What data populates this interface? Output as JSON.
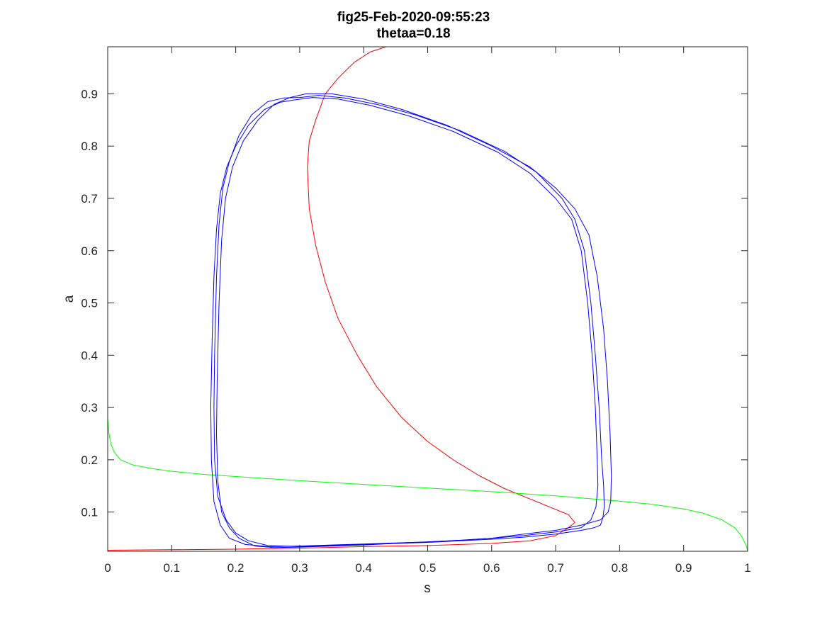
{
  "chart_data": {
    "type": "line",
    "title": "fig25-Feb-2020-09:55:23",
    "subtitle": "thetaa=0.18",
    "xlabel": "s",
    "ylabel": "a",
    "xlim": [
      0,
      1
    ],
    "ylim": [
      0.025,
      0.99
    ],
    "xticks": [
      "0",
      "0.1",
      "0.2",
      "0.3",
      "0.4",
      "0.5",
      "0.6",
      "0.7",
      "0.8",
      "0.9",
      "1"
    ],
    "yticks": [
      "0.1",
      "0.2",
      "0.3",
      "0.4",
      "0.5",
      "0.6",
      "0.7",
      "0.8",
      "0.9"
    ],
    "grid": false,
    "box": true,
    "series": [
      {
        "color": "#ff0000",
        "x": [
          0.0,
          0.1,
          0.2,
          0.25,
          0.3,
          0.4,
          0.5,
          0.6,
          0.66,
          0.7,
          0.72,
          0.73,
          0.72,
          0.69,
          0.66,
          0.62,
          0.58,
          0.54,
          0.5,
          0.46,
          0.42,
          0.39,
          0.36,
          0.34,
          0.325,
          0.315,
          0.312,
          0.315,
          0.325,
          0.34,
          0.36,
          0.385,
          0.41,
          0.435
        ],
        "y": [
          0.027,
          0.028,
          0.029,
          0.03,
          0.031,
          0.034,
          0.036,
          0.04,
          0.045,
          0.055,
          0.07,
          0.08,
          0.095,
          0.11,
          0.125,
          0.145,
          0.17,
          0.2,
          0.235,
          0.28,
          0.34,
          0.4,
          0.47,
          0.54,
          0.61,
          0.68,
          0.76,
          0.81,
          0.85,
          0.9,
          0.93,
          0.96,
          0.98,
          0.99
        ]
      },
      {
        "color": "#00ff00",
        "x": [
          0.0,
          0.0,
          0.0,
          0.002,
          0.005,
          0.01,
          0.02,
          0.04,
          0.07,
          0.1,
          0.15,
          0.2,
          0.3,
          0.4,
          0.5,
          0.6,
          0.7,
          0.8,
          0.85,
          0.9,
          0.93,
          0.96,
          0.98,
          0.99,
          0.995,
          0.998,
          1.0
        ],
        "y": [
          0.99,
          0.6,
          0.28,
          0.25,
          0.23,
          0.215,
          0.2,
          0.19,
          0.183,
          0.178,
          0.172,
          0.168,
          0.16,
          0.153,
          0.146,
          0.139,
          0.131,
          0.121,
          0.115,
          0.106,
          0.098,
          0.085,
          0.07,
          0.055,
          0.043,
          0.035,
          0.025
        ]
      },
      {
        "color": "#0000ff",
        "x": [
          0.3,
          0.33,
          0.37,
          0.42,
          0.48,
          0.55,
          0.62,
          0.67,
          0.71,
          0.73,
          0.745,
          0.755,
          0.762,
          0.768,
          0.772,
          0.775,
          0.776,
          0.774,
          0.77,
          0.76,
          0.74,
          0.7,
          0.65,
          0.6,
          0.55,
          0.5,
          0.45,
          0.4,
          0.35,
          0.3,
          0.25,
          0.22,
          0.2,
          0.185,
          0.172,
          0.167,
          0.166,
          0.167,
          0.17,
          0.174,
          0.18,
          0.19,
          0.205,
          0.225,
          0.25,
          0.275,
          0.3
        ],
        "y": [
          0.893,
          0.897,
          0.892,
          0.88,
          0.86,
          0.83,
          0.79,
          0.75,
          0.7,
          0.66,
          0.6,
          0.5,
          0.4,
          0.3,
          0.2,
          0.15,
          0.11,
          0.09,
          0.075,
          0.07,
          0.065,
          0.058,
          0.052,
          0.048,
          0.045,
          0.042,
          0.04,
          0.038,
          0.036,
          0.034,
          0.036,
          0.045,
          0.06,
          0.085,
          0.13,
          0.2,
          0.3,
          0.4,
          0.55,
          0.65,
          0.72,
          0.77,
          0.82,
          0.86,
          0.885,
          0.892,
          0.893
        ]
      },
      {
        "color": "#0000ff",
        "x": [
          0.31,
          0.35,
          0.4,
          0.46,
          0.53,
          0.6,
          0.66,
          0.7,
          0.73,
          0.752,
          0.765,
          0.775,
          0.781,
          0.785,
          0.787,
          0.786,
          0.782,
          0.77,
          0.74,
          0.7,
          0.65,
          0.6,
          0.55,
          0.5,
          0.45,
          0.4,
          0.35,
          0.3,
          0.26,
          0.23,
          0.205,
          0.19,
          0.178,
          0.172,
          0.17,
          0.171,
          0.174,
          0.178,
          0.184,
          0.195,
          0.212,
          0.235,
          0.26,
          0.285,
          0.31
        ],
        "y": [
          0.9,
          0.9,
          0.89,
          0.87,
          0.84,
          0.8,
          0.76,
          0.72,
          0.68,
          0.63,
          0.55,
          0.45,
          0.35,
          0.25,
          0.17,
          0.12,
          0.1,
          0.085,
          0.075,
          0.065,
          0.058,
          0.05,
          0.046,
          0.043,
          0.04,
          0.037,
          0.035,
          0.033,
          0.032,
          0.035,
          0.05,
          0.07,
          0.1,
          0.16,
          0.25,
          0.35,
          0.5,
          0.62,
          0.7,
          0.76,
          0.81,
          0.85,
          0.88,
          0.893,
          0.9
        ]
      },
      {
        "color": "#0000ff",
        "x": [
          0.29,
          0.32,
          0.36,
          0.41,
          0.47,
          0.54,
          0.61,
          0.66,
          0.7,
          0.725,
          0.74,
          0.75,
          0.757,
          0.762,
          0.765,
          0.766,
          0.763,
          0.755,
          0.74,
          0.7,
          0.65,
          0.6,
          0.55,
          0.5,
          0.45,
          0.4,
          0.35,
          0.3,
          0.25,
          0.215,
          0.19,
          0.176,
          0.166,
          0.162,
          0.161,
          0.163,
          0.166,
          0.17,
          0.176,
          0.186,
          0.2,
          0.22,
          0.245,
          0.27,
          0.29
        ],
        "y": [
          0.888,
          0.893,
          0.89,
          0.878,
          0.858,
          0.828,
          0.788,
          0.748,
          0.7,
          0.66,
          0.6,
          0.5,
          0.4,
          0.3,
          0.2,
          0.15,
          0.11,
          0.085,
          0.07,
          0.062,
          0.055,
          0.05,
          0.046,
          0.043,
          0.041,
          0.039,
          0.037,
          0.035,
          0.034,
          0.038,
          0.05,
          0.075,
          0.12,
          0.2,
          0.3,
          0.42,
          0.55,
          0.64,
          0.71,
          0.76,
          0.8,
          0.84,
          0.87,
          0.884,
          0.888
        ]
      }
    ]
  }
}
